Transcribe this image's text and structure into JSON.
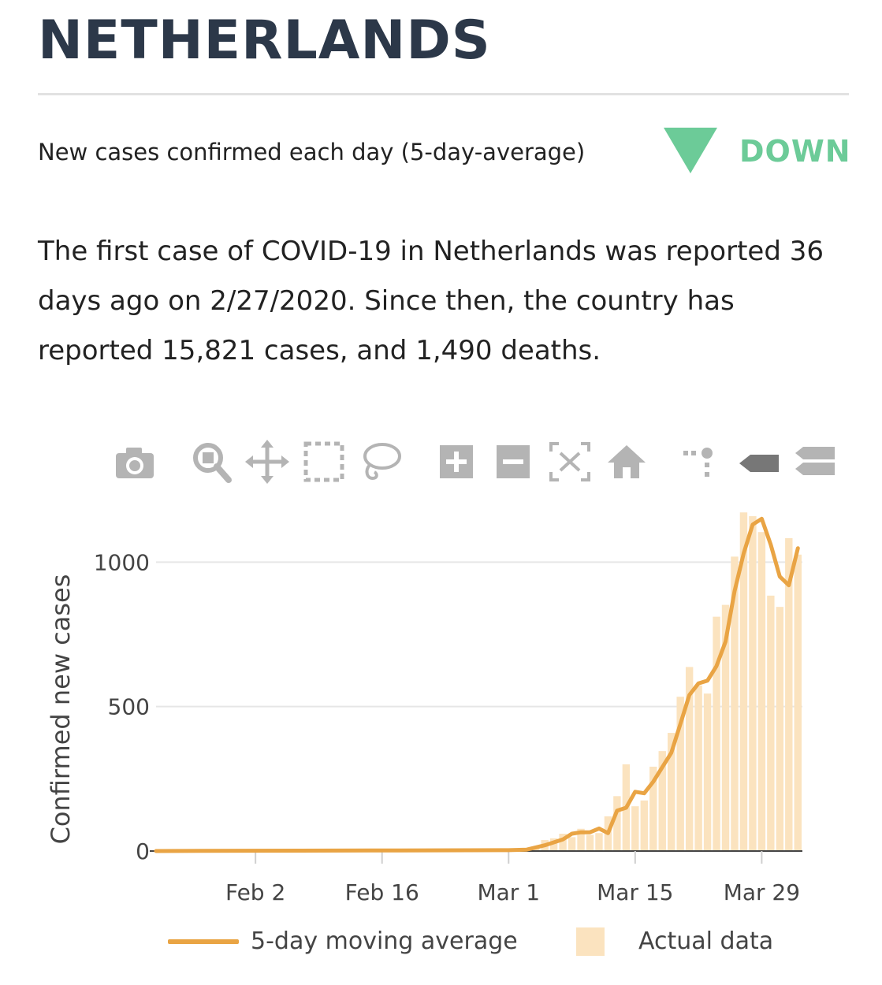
{
  "header": {
    "title": "NETHERLANDS",
    "subtitle": "New cases confirmed each day (5-day-average)",
    "trend_label": "DOWN",
    "trend_color": "#6ccb98"
  },
  "summary": "The first case of COVID-19 in Netherlands was reported 36 days ago on 2/27/2020. Since then, the country has reported 15,821 cases, and 1,490 deaths.",
  "toolbar": {
    "icons": [
      "camera-icon",
      "zoom-icon",
      "pan-icon",
      "box-select-icon",
      "lasso-select-icon",
      "zoom-in-icon",
      "zoom-out-icon",
      "autoscale-icon",
      "reset-axes-icon",
      "toggle-spike-lines-icon",
      "hover-closest-icon",
      "hover-compare-icon"
    ]
  },
  "chart_data": {
    "type": "bar",
    "ylabel": "Confirmed new cases",
    "xlabel": "",
    "ylim": [
      0,
      1200
    ],
    "yticks": [
      0,
      500,
      1000
    ],
    "xticks": [
      "Feb 2",
      "Feb 16",
      "Mar 1",
      "Mar 15",
      "Mar 29"
    ],
    "xtick_dates": [
      "2020-02-02",
      "2020-02-16",
      "2020-03-01",
      "2020-03-15",
      "2020-03-29"
    ],
    "grid": true,
    "legend_position": "bottom",
    "bar_color": "#fbe3bf",
    "line_color": "#e9a444",
    "series": [
      {
        "name": "Actual data",
        "type": "bar",
        "x": [
          "2020-03-02",
          "2020-03-03",
          "2020-03-04",
          "2020-03-05",
          "2020-03-06",
          "2020-03-07",
          "2020-03-08",
          "2020-03-09",
          "2020-03-10",
          "2020-03-11",
          "2020-03-12",
          "2020-03-13",
          "2020-03-14",
          "2020-03-15",
          "2020-03-16",
          "2020-03-17",
          "2020-03-18",
          "2020-03-19",
          "2020-03-20",
          "2020-03-21",
          "2020-03-22",
          "2020-03-23",
          "2020-03-24",
          "2020-03-25",
          "2020-03-26",
          "2020-03-27",
          "2020-03-28",
          "2020-03-29",
          "2020-03-30",
          "2020-03-31",
          "2020-04-01",
          "2020-04-02"
        ],
        "values": [
          5,
          6,
          10,
          38,
          44,
          60,
          48,
          77,
          56,
          62,
          120,
          190,
          300,
          155,
          175,
          292,
          346,
          409,
          534,
          637,
          573,
          545,
          811,
          852,
          1019,
          1172,
          1159,
          1104,
          884,
          845,
          1083,
          1026
        ]
      },
      {
        "name": "5-day moving average",
        "type": "line",
        "x": [
          "2020-01-22",
          "2020-02-01",
          "2020-02-15",
          "2020-03-01",
          "2020-03-03",
          "2020-03-05",
          "2020-03-07",
          "2020-03-08",
          "2020-03-09",
          "2020-03-10",
          "2020-03-11",
          "2020-03-12",
          "2020-03-13",
          "2020-03-14",
          "2020-03-15",
          "2020-03-16",
          "2020-03-17",
          "2020-03-18",
          "2020-03-19",
          "2020-03-20",
          "2020-03-21",
          "2020-03-22",
          "2020-03-23",
          "2020-03-24",
          "2020-03-25",
          "2020-03-26",
          "2020-03-27",
          "2020-03-28",
          "2020-03-29",
          "2020-03-30",
          "2020-03-31",
          "2020-04-01",
          "2020-04-02"
        ],
        "values": [
          0,
          1,
          2,
          3,
          5,
          20,
          40,
          60,
          65,
          65,
          78,
          62,
          140,
          150,
          205,
          200,
          240,
          290,
          340,
          440,
          540,
          580,
          590,
          640,
          725,
          900,
          1030,
          1130,
          1150,
          1060,
          950,
          920,
          1048
        ]
      }
    ]
  },
  "legend": {
    "line_label": "5-day moving average",
    "bar_label": "Actual data"
  }
}
